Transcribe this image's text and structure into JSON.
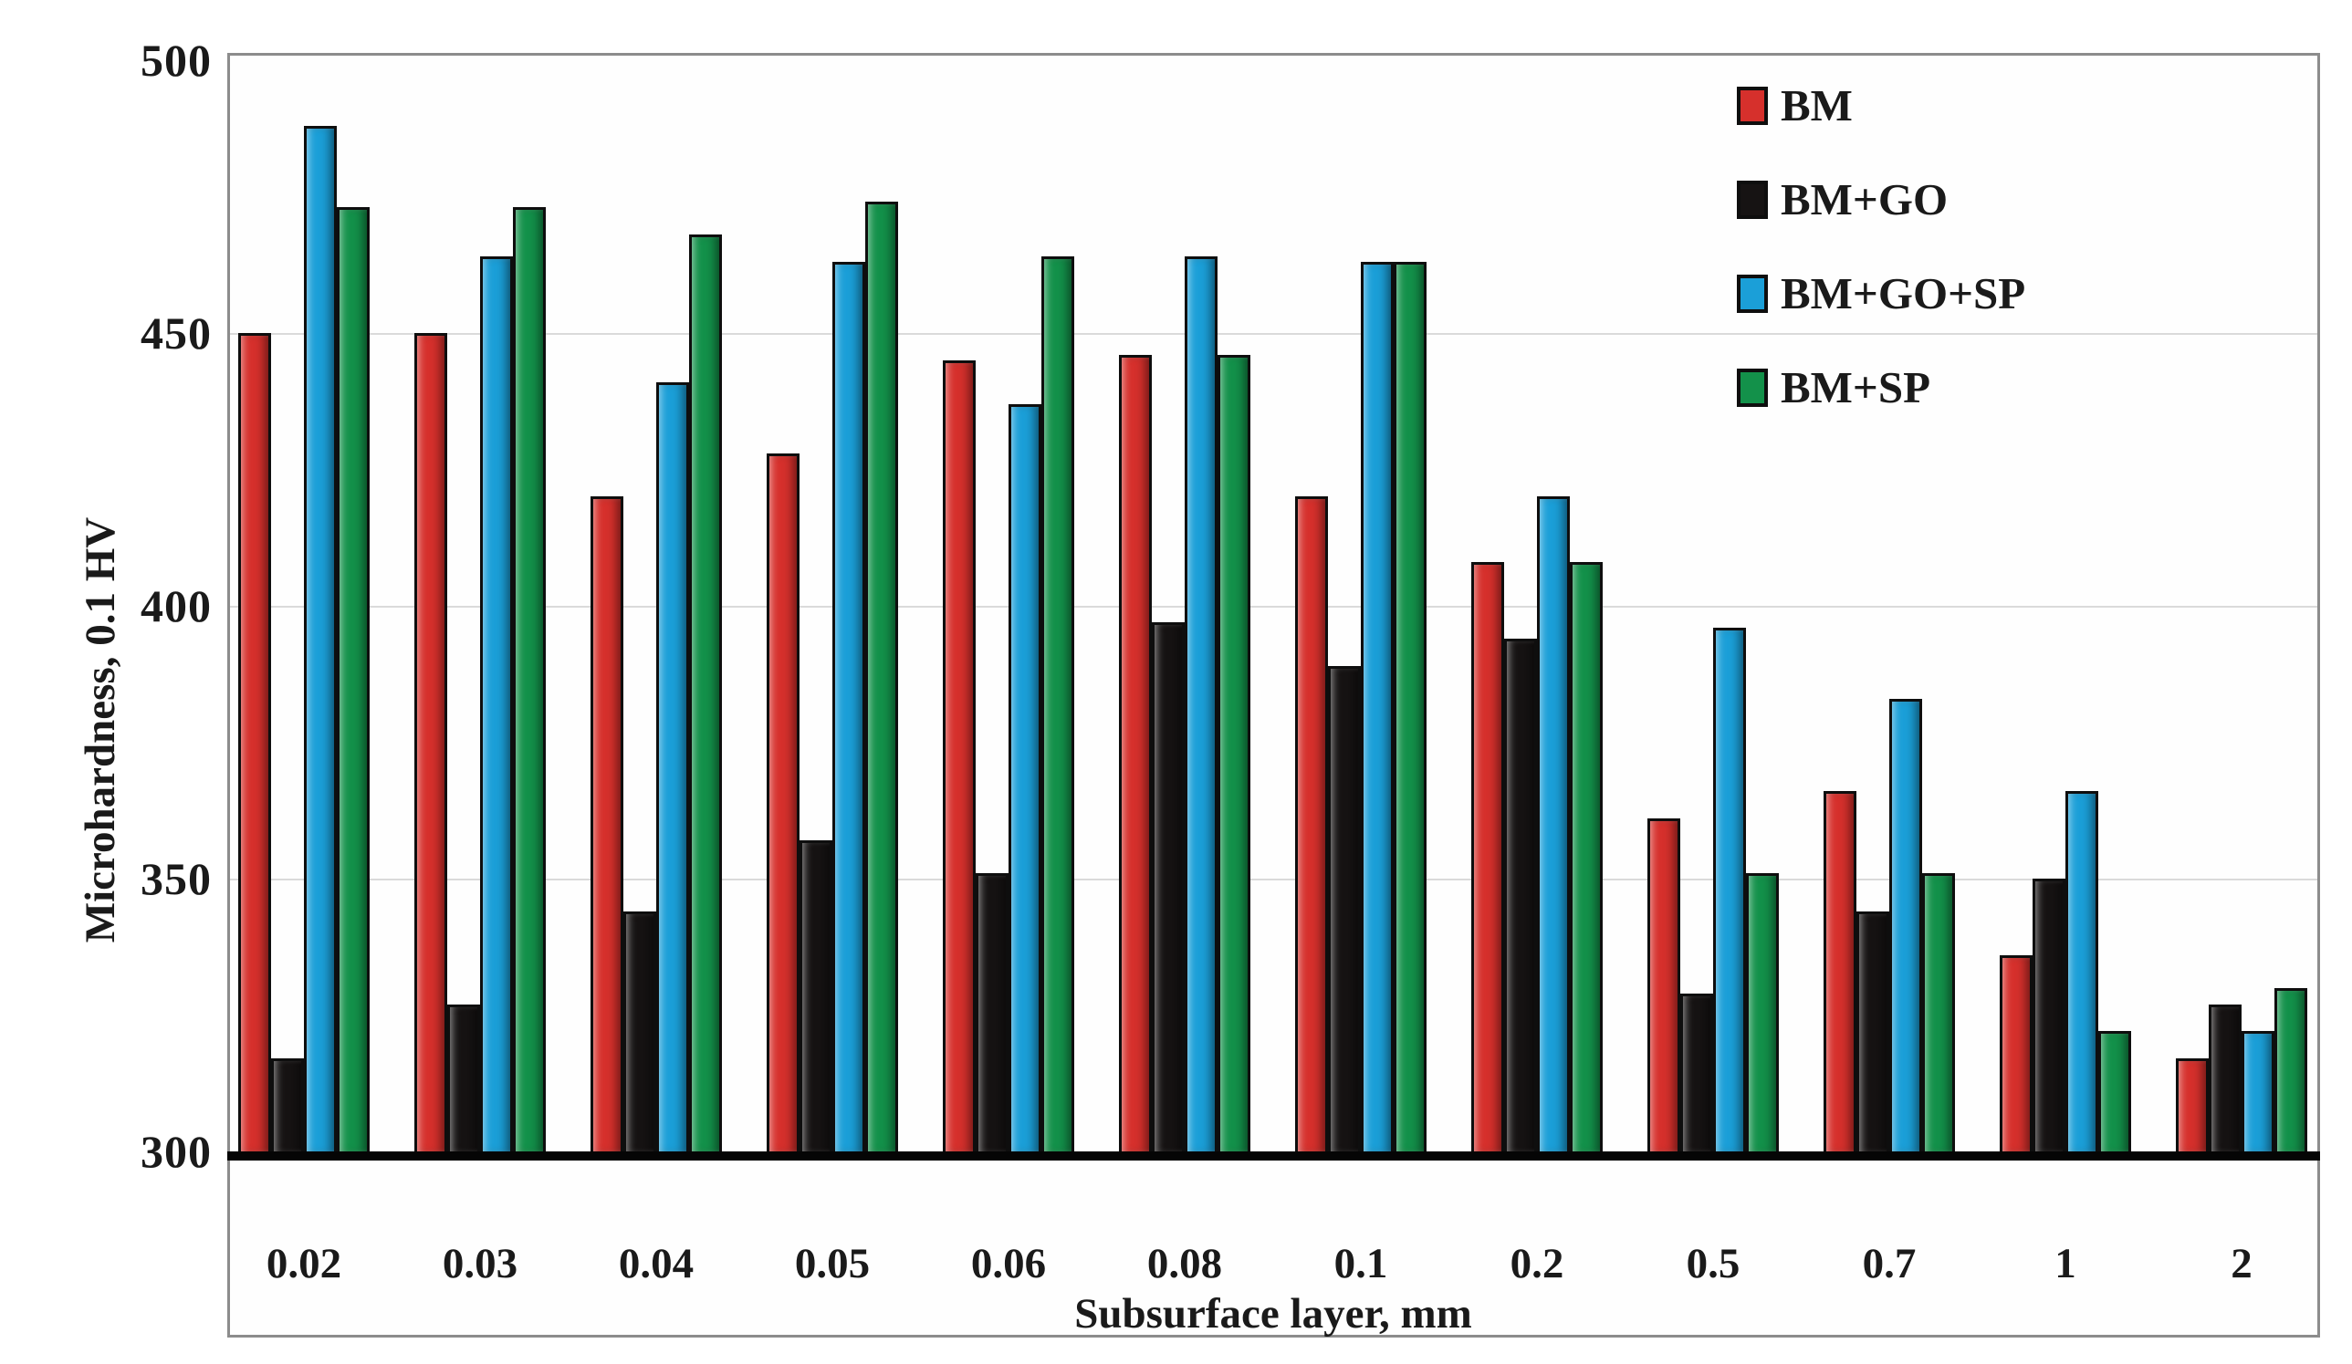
{
  "chart_data": {
    "type": "bar",
    "title": "",
    "categories": [
      "0.02",
      "0.03",
      "0.04",
      "0.05",
      "0.06",
      "0.08",
      "0.1",
      "0.2",
      "0.5",
      "0.7",
      "1",
      "2"
    ],
    "series": [
      {
        "name": "BM",
        "color": "#d6302c",
        "values": [
          450,
          450,
          420,
          428,
          445,
          446,
          420,
          408,
          361,
          366,
          336,
          317
        ]
      },
      {
        "name": "BM+GO",
        "color": "#161313",
        "values": [
          317,
          327,
          344,
          357,
          351,
          397,
          389,
          394,
          329,
          344,
          350,
          327
        ]
      },
      {
        "name": "BM+GO+SP",
        "color": "#1b9fd8",
        "values": [
          488,
          464,
          441,
          463,
          437,
          464,
          463,
          420,
          396,
          383,
          366,
          322
        ]
      },
      {
        "name": "BM+SP",
        "color": "#13914a",
        "values": [
          473,
          473,
          468,
          474,
          464,
          446,
          463,
          408,
          351,
          351,
          322,
          330
        ]
      }
    ],
    "xlabel": "Subsurface layer, mm",
    "ylabel": "Microhardness, 0.1 HV",
    "ylim": [
      300,
      500
    ],
    "yticks": [
      300,
      350,
      400,
      450,
      500
    ],
    "gridline_values": [
      350,
      400,
      450
    ],
    "grid": "horizontal",
    "legend_position": "top-right"
  },
  "colors": {
    "frame": "#8c8c8c",
    "gridline": "#dadada",
    "baseline": "#050505",
    "text": "#1a1a1a",
    "background": "#ffffff"
  }
}
